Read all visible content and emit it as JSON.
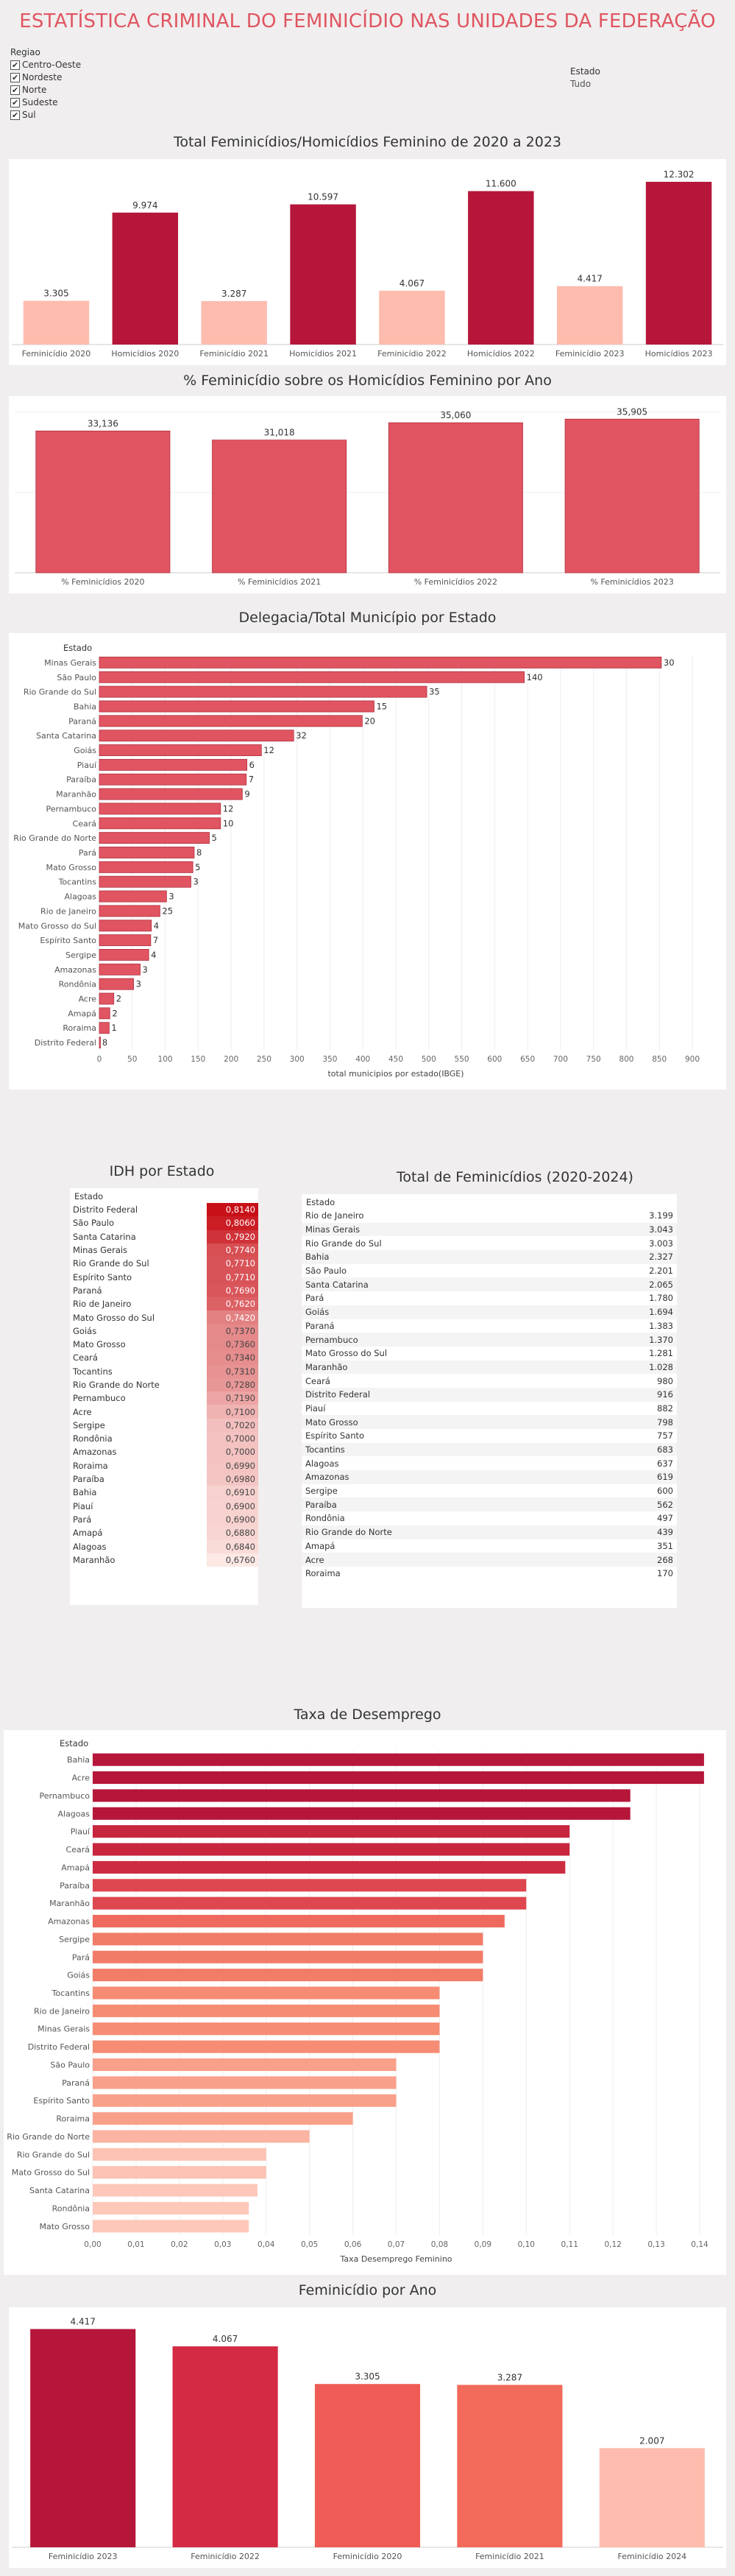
{
  "header": {
    "title": "ESTATÍSTICA CRIMINAL DO FEMINICÍDIO NAS UNIDADES DA FEDERAÇÃO",
    "regiao_label": "Regiao",
    "regiao_options": [
      "Centro-Oeste",
      "Nordeste",
      "Norte",
      "Sudeste",
      "Sul"
    ],
    "estado_label": "Estado",
    "estado_value": "Tudo"
  },
  "colors": {
    "dark": "#b5163a",
    "light": "#fdbcae",
    "red": "#e05561",
    "accent": "#e05561"
  },
  "chart_data": [
    {
      "type": "bar",
      "title": "Total Feminicídios/Homicídios Feminino de 2020 a 2023",
      "categories": [
        "Feminicídio 2020",
        "Homicídios 2020",
        "Feminicídio 2021",
        "Homicídios 2021",
        "Feminicídio 2022",
        "Homicídios 2022",
        "Feminicídio 2023",
        "Homicídios 2023"
      ],
      "values": [
        3305,
        9974,
        3287,
        10597,
        4067,
        11600,
        4417,
        12302
      ],
      "labels": [
        "3.305",
        "9.974",
        "3.287",
        "10.597",
        "4.067",
        "11.600",
        "4.417",
        "12.302"
      ],
      "ylim": [
        0,
        12800
      ]
    },
    {
      "type": "bar",
      "title": "% Feminicídio sobre os Homicídios Feminino por Ano",
      "categories": [
        "% Feminicídios 2020",
        "% Feminicídios 2021",
        "% Feminicídios 2022",
        "% Feminicídios 2023"
      ],
      "values": [
        33.136,
        31.018,
        35.06,
        35.905
      ],
      "labels": [
        "33,136",
        "31,018",
        "35,060",
        "35,905"
      ],
      "ylim": [
        0,
        37.5
      ]
    },
    {
      "type": "bar",
      "orientation": "horizontal",
      "title": "Delegacia/Total Município por Estado",
      "ylabel": "Estado",
      "xlabel": "total municipios por estado(IBGE)",
      "xticks": [
        0,
        50,
        100,
        150,
        200,
        250,
        300,
        350,
        400,
        450,
        500,
        550,
        600,
        650,
        700,
        750,
        800,
        850,
        900
      ],
      "xlim": [
        0,
        900
      ],
      "categories": [
        "Minas Gerais",
        "São Paulo",
        "Rio Grande do Sul",
        "Bahia",
        "Paraná",
        "Santa Catarina",
        "Goiás",
        "Piauí",
        "Paraíba",
        "Maranhão",
        "Pernambuco",
        "Ceará",
        "Rio Grande do Norte",
        "Pará",
        "Mato Grosso",
        "Tocantins",
        "Alagoas",
        "Rio de Janeiro",
        "Mato Grosso do Sul",
        "Espírito Santo",
        "Sergipe",
        "Amazonas",
        "Rondônia",
        "Acre",
        "Amapá",
        "Roraima",
        "Distrito Federal"
      ],
      "values": [
        853,
        645,
        497,
        417,
        399,
        295,
        246,
        224,
        223,
        217,
        184,
        184,
        167,
        144,
        142,
        139,
        102,
        92,
        79,
        78,
        75,
        62,
        52,
        22,
        16,
        15,
        1
      ],
      "labels": [
        "30",
        "140",
        "35",
        "15",
        "20",
        "32",
        "12",
        "6",
        "7",
        "9",
        "12",
        "10",
        "5",
        "8",
        "5",
        "3",
        "3",
        "25",
        "4",
        "7",
        "4",
        "3",
        "3",
        "2",
        "2",
        "1",
        "8"
      ]
    },
    {
      "type": "table",
      "title": "IDH por Estado",
      "header": "Estado",
      "rows": [
        [
          "Distrito Federal",
          "0,8140"
        ],
        [
          "São Paulo",
          "0,8060"
        ],
        [
          "Santa Catarina",
          "0,7920"
        ],
        [
          "Minas Gerais",
          "0,7740"
        ],
        [
          "Rio Grande do Sul",
          "0,7710"
        ],
        [
          "Espírito Santo",
          "0,7710"
        ],
        [
          "Paraná",
          "0,7690"
        ],
        [
          "Rio de Janeiro",
          "0,7620"
        ],
        [
          "Mato Grosso do Sul",
          "0,7420"
        ],
        [
          "Goiás",
          "0,7370"
        ],
        [
          "Mato Grosso",
          "0,7360"
        ],
        [
          "Ceará",
          "0,7340"
        ],
        [
          "Tocantins",
          "0,7310"
        ],
        [
          "Rio Grande do Norte",
          "0,7280"
        ],
        [
          "Pernambuco",
          "0,7190"
        ],
        [
          "Acre",
          "0,7100"
        ],
        [
          "Sergipe",
          "0,7020"
        ],
        [
          "Rondônia",
          "0,7000"
        ],
        [
          "Amazonas",
          "0,7000"
        ],
        [
          "Roraima",
          "0,6990"
        ],
        [
          "Paraíba",
          "0,6980"
        ],
        [
          "Bahia",
          "0,6910"
        ],
        [
          "Piauí",
          "0,6900"
        ],
        [
          "Pará",
          "0,6900"
        ],
        [
          "Amapá",
          "0,6880"
        ],
        [
          "Alagoas",
          "0,6840"
        ],
        [
          "Maranhão",
          "0,6760"
        ]
      ]
    },
    {
      "type": "table",
      "title": "Total de Feminicídios (2020-2024)",
      "header": "Estado",
      "rows": [
        [
          "Rio de Janeiro",
          "3.199"
        ],
        [
          "Minas Gerais",
          "3.043"
        ],
        [
          "Rio Grande do Sul",
          "3.003"
        ],
        [
          "Bahia",
          "2.327"
        ],
        [
          "São Paulo",
          "2.201"
        ],
        [
          "Santa Catarina",
          "2.065"
        ],
        [
          "Pará",
          "1.780"
        ],
        [
          "Goiás",
          "1.694"
        ],
        [
          "Paraná",
          "1.383"
        ],
        [
          "Pernambuco",
          "1.370"
        ],
        [
          "Mato Grosso do Sul",
          "1.281"
        ],
        [
          "Maranhão",
          "1.028"
        ],
        [
          "Ceará",
          "980"
        ],
        [
          "Distrito Federal",
          "916"
        ],
        [
          "Piauí",
          "882"
        ],
        [
          "Mato Grosso",
          "798"
        ],
        [
          "Espírito Santo",
          "757"
        ],
        [
          "Tocantins",
          "683"
        ],
        [
          "Alagoas",
          "637"
        ],
        [
          "Amazonas",
          "619"
        ],
        [
          "Sergipe",
          "600"
        ],
        [
          "Paraíba",
          "562"
        ],
        [
          "Rondônia",
          "497"
        ],
        [
          "Rio Grande do Norte",
          "439"
        ],
        [
          "Amapá",
          "351"
        ],
        [
          "Acre",
          "268"
        ],
        [
          "Roraima",
          "170"
        ]
      ]
    },
    {
      "type": "bar",
      "orientation": "horizontal",
      "title": "Taxa de Desemprego",
      "ylabel": "Estado",
      "xlabel": "Taxa Desemprego Feminino",
      "xticks": [
        "0,00",
        "0,01",
        "0,02",
        "0,03",
        "0,04",
        "0,05",
        "0,06",
        "0,07",
        "0,08",
        "0,09",
        "0,10",
        "0,11",
        "0,12",
        "0,13",
        "0,14"
      ],
      "xlim": [
        0,
        0.14
      ],
      "categories": [
        "Bahia",
        "Acre",
        "Pernambuco",
        "Alagoas",
        "Piauí",
        "Ceará",
        "Amapá",
        "Paraíba",
        "Maranhão",
        "Amazonas",
        "Sergipe",
        "Pará",
        "Goiás",
        "Tocantins",
        "Rio de Janeiro",
        "Minas Gerais",
        "Distrito Federal",
        "São Paulo",
        "Paraná",
        "Espírito Santo",
        "Roraima",
        "Rio Grande do Norte",
        "Rio Grande do Sul",
        "Mato Grosso do Sul",
        "Santa Catarina",
        "Rondônia",
        "Mato Grosso"
      ],
      "values": [
        0.141,
        0.141,
        0.124,
        0.124,
        0.11,
        0.11,
        0.109,
        0.1,
        0.1,
        0.095,
        0.09,
        0.09,
        0.09,
        0.08,
        0.08,
        0.08,
        0.08,
        0.07,
        0.07,
        0.07,
        0.06,
        0.05,
        0.04,
        0.04,
        0.038,
        0.036,
        0.036
      ]
    },
    {
      "type": "bar",
      "title": "Feminicídio por Ano",
      "categories": [
        "Feminicídio 2023",
        "Feminicídio 2022",
        "Feminicídio 2020",
        "Feminicídio 2021",
        "Feminicídio 2024"
      ],
      "values": [
        4417,
        4067,
        3305,
        3287,
        2007
      ],
      "labels": [
        "4.417",
        "4.067",
        "3.305",
        "3.287",
        "2.007"
      ],
      "ylim": [
        0,
        4500
      ]
    }
  ]
}
